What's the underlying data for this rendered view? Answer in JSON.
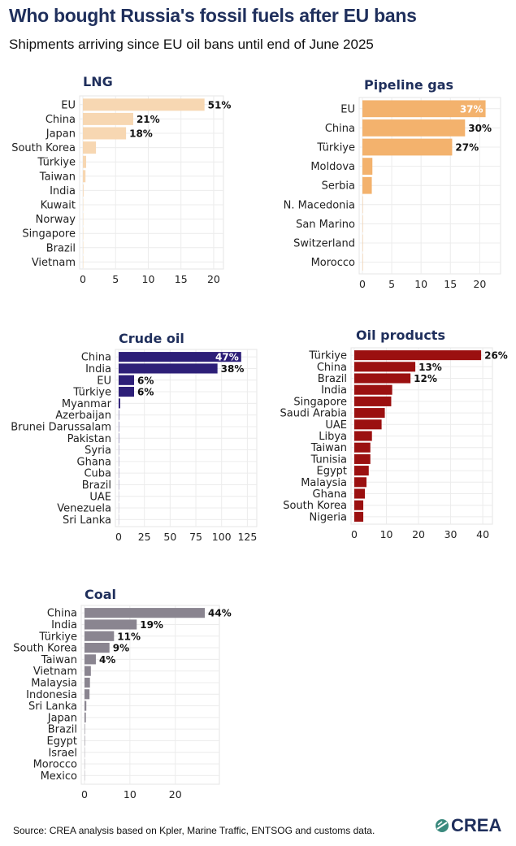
{
  "header": {
    "title": "Who bought Russia's fossil fuels after EU bans",
    "subtitle": "Shipments arriving since EU oil bans until end of June 2025"
  },
  "footer": {
    "source": "Source: CREA analysis based on Kpler, Marine Traffic, ENTSOG and customs data.",
    "logo_text": "CREA"
  },
  "colors": {
    "lng": "#f7d7b2",
    "pipeline": "#f3b26d",
    "crude": "#2d1f78",
    "oil_products": "#9b1010",
    "coal": "#8a8590",
    "title": "#1f2f5c"
  },
  "chart_data": [
    {
      "id": "lng",
      "type": "bar",
      "orientation": "horizontal",
      "title": "LNG",
      "categories": [
        "EU",
        "China",
        "Japan",
        "South Korea",
        "Türkiye",
        "Taiwan",
        "India",
        "Kuwait",
        "Norway",
        "Singapore",
        "Brazil",
        "Vietnam"
      ],
      "values": [
        18.6,
        7.7,
        6.6,
        2.0,
        0.5,
        0.4,
        0.1,
        0.05,
        0.05,
        0.05,
        0.05,
        0.05
      ],
      "labels": [
        "51%",
        "21%",
        "18%",
        "",
        "",
        "",
        "",
        "",
        "",
        "",
        "",
        ""
      ],
      "xticks": [
        0,
        5,
        10,
        15,
        20
      ],
      "xlim": [
        0,
        21
      ],
      "color": "#f7d7b2"
    },
    {
      "id": "pipeline",
      "type": "bar",
      "orientation": "horizontal",
      "title": "Pipeline gas",
      "categories": [
        "EU",
        "China",
        "Türkiye",
        "Moldova",
        "Serbia",
        "N. Macedonia",
        "San Marino",
        "Switzerland",
        "Morocco"
      ],
      "values": [
        21.0,
        17.5,
        15.3,
        1.7,
        1.6,
        0.05,
        0.05,
        0.05,
        0.05
      ],
      "labels": [
        "37%",
        "30%",
        "27%",
        "",
        "",
        "",
        "",
        "",
        ""
      ],
      "xticks": [
        0,
        5,
        10,
        15,
        20
      ],
      "xlim": [
        0,
        23
      ],
      "color": "#f3b26d"
    },
    {
      "id": "crude",
      "type": "bar",
      "orientation": "horizontal",
      "title": "Crude oil",
      "categories": [
        "China",
        "India",
        "EU",
        "Türkiye",
        "Myanmar",
        "Azerbaijan",
        "Brunei Darussalam",
        "Pakistan",
        "Syria",
        "Ghana",
        "Cuba",
        "Brazil",
        "UAE",
        "Venezuela",
        "Sri Lanka"
      ],
      "values": [
        119,
        96,
        15,
        15,
        1.5,
        0.3,
        0.3,
        0.3,
        0.2,
        0.2,
        0.2,
        0.2,
        0.1,
        0.1,
        0.1
      ],
      "labels": [
        "47%",
        "38%",
        "6%",
        "6%",
        "",
        "",
        "",
        "",
        "",
        "",
        "",
        "",
        "",
        "",
        ""
      ],
      "xticks": [
        0,
        25,
        50,
        75,
        100,
        125
      ],
      "xlim": [
        0,
        131
      ],
      "color": "#2d1f78"
    },
    {
      "id": "oil_products",
      "type": "bar",
      "orientation": "horizontal",
      "title": "Oil products",
      "categories": [
        "Türkiye",
        "China",
        "Brazil",
        "India",
        "Singapore",
        "Saudi Arabia",
        "UAE",
        "Libya",
        "Taiwan",
        "Tunisia",
        "Egypt",
        "Malaysia",
        "Ghana",
        "South Korea",
        "Nigeria"
      ],
      "values": [
        39.5,
        19.0,
        17.5,
        11.8,
        11.5,
        9.5,
        8.5,
        5.5,
        5.0,
        5.0,
        4.5,
        3.8,
        3.3,
        2.8,
        2.8
      ],
      "labels": [
        "26%",
        "13%",
        "12%",
        "",
        "",
        "",
        "",
        "",
        "",
        "",
        "",
        "",
        "",
        "",
        ""
      ],
      "xticks": [
        0,
        10,
        20,
        30,
        40
      ],
      "xlim": [
        0,
        42
      ],
      "color": "#9b1010"
    },
    {
      "id": "coal",
      "type": "bar",
      "orientation": "horizontal",
      "title": "Coal",
      "categories": [
        "China",
        "India",
        "Türkiye",
        "South Korea",
        "Taiwan",
        "Vietnam",
        "Malaysia",
        "Indonesia",
        "Sri Lanka",
        "Japan",
        "Brazil",
        "Egypt",
        "Israel",
        "Morocco",
        "Mexico"
      ],
      "values": [
        26.5,
        11.5,
        6.5,
        5.5,
        2.5,
        1.4,
        1.2,
        1.1,
        0.4,
        0.3,
        0.1,
        0.1,
        0.05,
        0.05,
        0.05
      ],
      "labels": [
        "44%",
        "19%",
        "11%",
        "9%",
        "4%",
        "",
        "",
        "",
        "",
        "",
        "",
        "",
        "",
        "",
        ""
      ],
      "xticks": [
        0,
        10,
        20
      ],
      "xlim": [
        0,
        29
      ],
      "color": "#8a8590"
    }
  ]
}
